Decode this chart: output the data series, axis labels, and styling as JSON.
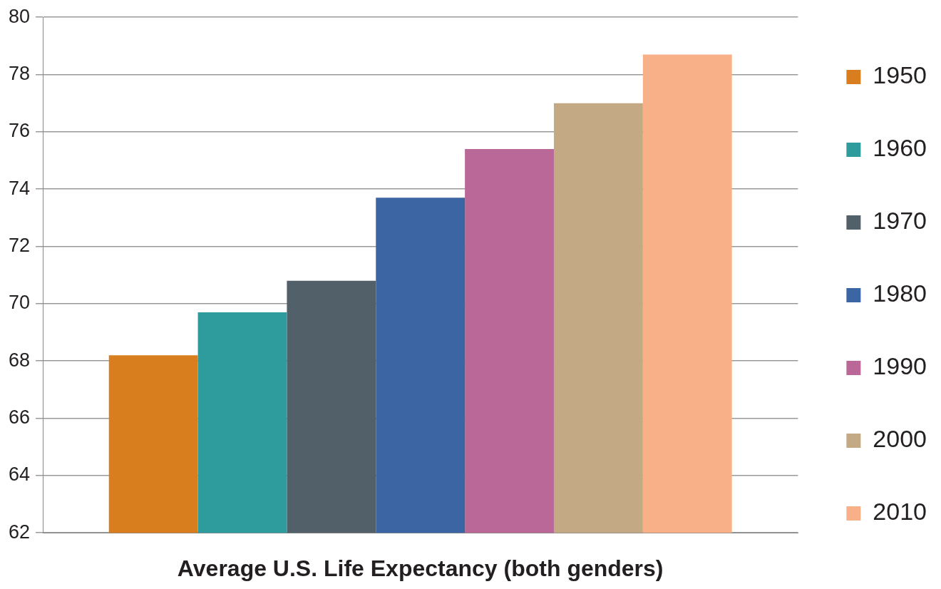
{
  "chart_data": {
    "type": "bar",
    "xlabel": "Average U.S. Life Expectancy (both genders)",
    "categories": [
      null
    ],
    "series": [
      {
        "name": "1950",
        "color": "#d97e1f",
        "values": [
          68.2
        ]
      },
      {
        "name": "1960",
        "color": "#2e9c9c",
        "values": [
          69.7
        ]
      },
      {
        "name": "1970",
        "color": "#526069",
        "values": [
          70.8
        ]
      },
      {
        "name": "1980",
        "color": "#3c66a3",
        "values": [
          73.7
        ]
      },
      {
        "name": "1990",
        "color": "#ba6898",
        "values": [
          75.4
        ]
      },
      {
        "name": "2000",
        "color": "#c3a984",
        "values": [
          77.0
        ]
      },
      {
        "name": "2010",
        "color": "#f7b088",
        "values": [
          78.7
        ]
      }
    ],
    "ylim": [
      62,
      80
    ],
    "yticks": [
      62,
      64,
      66,
      68,
      70,
      72,
      74,
      76,
      78,
      80
    ],
    "grid": "y",
    "legend": "right"
  }
}
